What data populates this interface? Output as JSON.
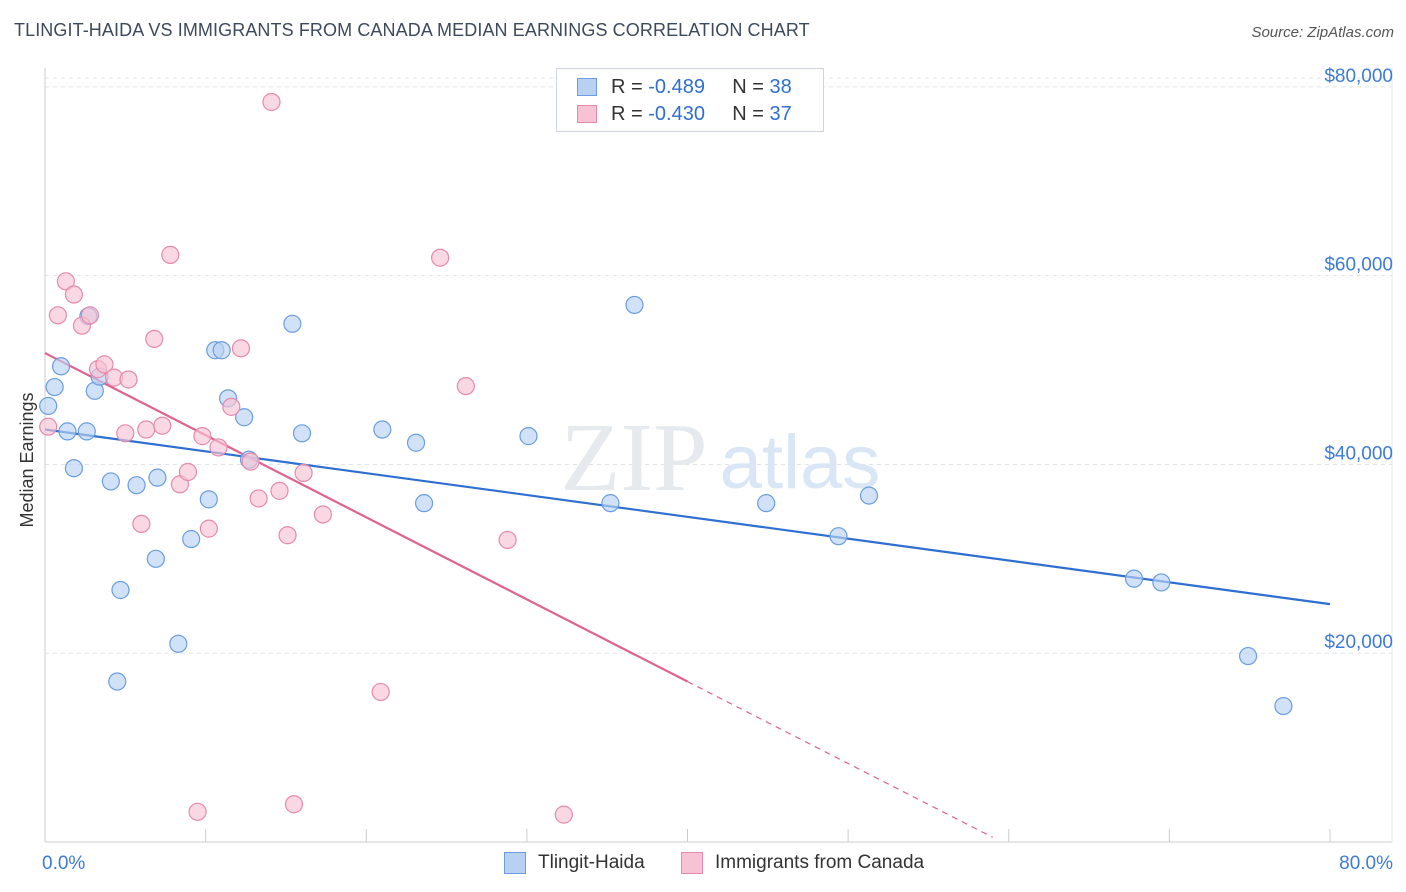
{
  "header": {
    "title": "TLINGIT-HAIDA VS IMMIGRANTS FROM CANADA MEDIAN EARNINGS CORRELATION CHART",
    "source": "Source: ZipAtlas.com"
  },
  "watermark": {
    "zip": "ZIP",
    "atlas": "atlas"
  },
  "legend": {
    "r_label": "R =",
    "n_label": "N =",
    "series1": {
      "r": "-0.489",
      "n": "38"
    },
    "series2": {
      "r": "-0.430",
      "n": "37"
    }
  },
  "bottom_legend": {
    "series1": "Tlingit-Haida",
    "series2": "Immigrants from Canada"
  },
  "colors": {
    "blue_fill": "#b8d1f2",
    "blue_stroke": "#6a9ee0",
    "blue_line": "#2e6fd1",
    "pink_fill": "#f7c3d4",
    "pink_stroke": "#e58aab",
    "pink_line": "#e0628f",
    "tick_label": "#3d7bd6",
    "grid": "#dfe3e8"
  },
  "chart_data": {
    "type": "scatter",
    "title": "TLINGIT-HAIDA VS IMMIGRANTS FROM CANADA MEDIAN EARNINGS CORRELATION CHART",
    "xlabel": "",
    "ylabel": "Median Earnings",
    "xlim": [
      0,
      80
    ],
    "ylim": [
      0,
      82000
    ],
    "x_tick_labels": [
      "0.0%",
      "80.0%"
    ],
    "y_ticks": [
      20000,
      40000,
      60000,
      80000
    ],
    "y_tick_labels": [
      "$20,000",
      "$40,000",
      "$60,000",
      "$80,000"
    ],
    "series": [
      {
        "name": "Tlingit-Haida",
        "r": -0.489,
        "n": 38,
        "trend": {
          "x0": 0,
          "y0": 43700,
          "x1": 80,
          "y1": 25200
        },
        "points": [
          [
            0.2,
            46200
          ],
          [
            0.6,
            48200
          ],
          [
            1.0,
            50400
          ],
          [
            1.4,
            43500
          ],
          [
            1.8,
            39600
          ],
          [
            2.6,
            43500
          ],
          [
            2.7,
            55700
          ],
          [
            3.1,
            47800
          ],
          [
            3.4,
            49300
          ],
          [
            4.1,
            38200
          ],
          [
            4.5,
            17000
          ],
          [
            4.7,
            26700
          ],
          [
            5.7,
            37800
          ],
          [
            6.9,
            30000
          ],
          [
            7.0,
            38600
          ],
          [
            8.3,
            21000
          ],
          [
            9.1,
            32100
          ],
          [
            10.2,
            36300
          ],
          [
            10.6,
            52100
          ],
          [
            11.0,
            52100
          ],
          [
            11.4,
            47000
          ],
          [
            12.4,
            45000
          ],
          [
            12.7,
            40500
          ],
          [
            15.4,
            54900
          ],
          [
            16.0,
            43300
          ],
          [
            21.0,
            43700
          ],
          [
            23.6,
            35900
          ],
          [
            23.1,
            42300
          ],
          [
            30.1,
            43000
          ],
          [
            35.2,
            35900
          ],
          [
            36.7,
            56900
          ],
          [
            44.9,
            35900
          ],
          [
            49.4,
            32400
          ],
          [
            51.3,
            36700
          ],
          [
            67.8,
            27900
          ],
          [
            69.5,
            27500
          ],
          [
            74.9,
            19700
          ],
          [
            77.1,
            14400
          ]
        ]
      },
      {
        "name": "Immigrants from Canada",
        "r": -0.43,
        "n": 37,
        "trend": {
          "x0": 0,
          "y0": 51800,
          "x1": 40,
          "y1": 17000
        },
        "trend_dashed": {
          "x0": 40,
          "y0": 17000,
          "x1": 59,
          "y1": 500
        },
        "points": [
          [
            0.2,
            44000
          ],
          [
            0.8,
            55800
          ],
          [
            1.3,
            59400
          ],
          [
            1.8,
            58000
          ],
          [
            2.3,
            54700
          ],
          [
            2.8,
            55800
          ],
          [
            3.3,
            50100
          ],
          [
            3.7,
            50600
          ],
          [
            4.3,
            49200
          ],
          [
            5.0,
            43300
          ],
          [
            5.2,
            49000
          ],
          [
            6.0,
            33700
          ],
          [
            6.3,
            43700
          ],
          [
            6.8,
            53300
          ],
          [
            7.3,
            44100
          ],
          [
            7.8,
            62200
          ],
          [
            8.4,
            37900
          ],
          [
            8.9,
            39200
          ],
          [
            9.5,
            3200
          ],
          [
            9.8,
            43000
          ],
          [
            10.2,
            33200
          ],
          [
            10.8,
            41800
          ],
          [
            11.6,
            46100
          ],
          [
            12.2,
            52300
          ],
          [
            12.8,
            40300
          ],
          [
            13.3,
            36400
          ],
          [
            14.1,
            78400
          ],
          [
            14.6,
            37200
          ],
          [
            15.1,
            32500
          ],
          [
            15.5,
            4000
          ],
          [
            16.1,
            39100
          ],
          [
            17.3,
            34700
          ],
          [
            20.9,
            15900
          ],
          [
            24.6,
            61900
          ],
          [
            26.2,
            48300
          ],
          [
            28.8,
            32000
          ],
          [
            32.3,
            2900
          ]
        ]
      }
    ]
  }
}
